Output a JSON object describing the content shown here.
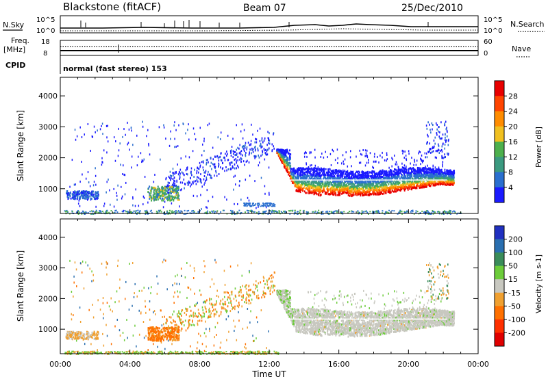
{
  "header": {
    "station": "Blackstone (fitACF)",
    "beam": "Beam 07",
    "date": "25/Dec/2010"
  },
  "summary_panels": {
    "nsky": {
      "label": "N.Sky",
      "tick_top": "10^5",
      "tick_bottom": "10^0"
    },
    "nsearch": {
      "label": "N.Search",
      "tick_top": "10^5",
      "tick_bottom": "10^0"
    },
    "freq": {
      "label": "Freq.",
      "unit": "[MHz]",
      "tick_top": "18",
      "tick_bottom": "8"
    },
    "nave": {
      "label": "Nave",
      "tick_top": "60",
      "tick_bottom": "0"
    },
    "cpid": {
      "label": "CPID",
      "value": "normal (fast stereo) 153"
    }
  },
  "chart_data": [
    {
      "type": "heatmap",
      "name": "power",
      "ylabel": "Slant Range [km]",
      "ylim": [
        200,
        4600
      ],
      "yticks": [
        "1000",
        "2000",
        "3000",
        "4000"
      ],
      "colorbar_label": "Power [dB]",
      "colorbar_ticks": [
        "4",
        "8",
        "12",
        "16",
        "20",
        "24",
        "28"
      ],
      "colorbar_colors": [
        "#1a1aff",
        "#2a6fcf",
        "#3b9a80",
        "#4db04d",
        "#f0c020",
        "#ff8c00",
        "#ff4400",
        "#e80000"
      ],
      "features": [
        {
          "desc": "near-range scatter",
          "x_hours": [
            0,
            23
          ],
          "range_km": [
            200,
            300
          ],
          "level": "8"
        },
        {
          "desc": "patch",
          "x_hours": [
            0.3,
            2.2
          ],
          "range_km": [
            700,
            950
          ],
          "level": "8"
        },
        {
          "desc": "patch",
          "x_hours": [
            5.0,
            6.8
          ],
          "range_km": [
            650,
            1100
          ],
          "level": "12"
        },
        {
          "desc": "band",
          "x_hours": [
            12.4,
            22.6
          ],
          "range_km": [
            700,
            1600
          ],
          "level": "24"
        }
      ]
    },
    {
      "type": "heatmap",
      "name": "velocity",
      "ylabel": "Slant Range [km]",
      "ylim": [
        200,
        4600
      ],
      "yticks": [
        "1000",
        "2000",
        "3000",
        "4000"
      ],
      "xlabel": "Time UT",
      "xticks": [
        "00:00",
        "04:00",
        "08:00",
        "12:00",
        "16:00",
        "20:00",
        "00:00"
      ],
      "colorbar_label": "Velocity [m s-1]",
      "colorbar_ticks": [
        "200",
        "100",
        "50",
        "15",
        "-15",
        "-50",
        "-100",
        "-200"
      ],
      "colorbar_colors": [
        "#2030c0",
        "#2a6fb0",
        "#3a8c5a",
        "#6ccc3a",
        "#c8c8c0",
        "#f0a030",
        "#ff7000",
        "#ff3000",
        "#e00000"
      ],
      "features": [
        {
          "desc": "patch",
          "x_hours": [
            5.0,
            6.8
          ],
          "range_km": [
            650,
            1100
          ],
          "level": "-50"
        },
        {
          "desc": "band",
          "x_hours": [
            12.4,
            22.6
          ],
          "range_km": [
            700,
            1600
          ],
          "level": "-15 to 15"
        }
      ]
    }
  ]
}
